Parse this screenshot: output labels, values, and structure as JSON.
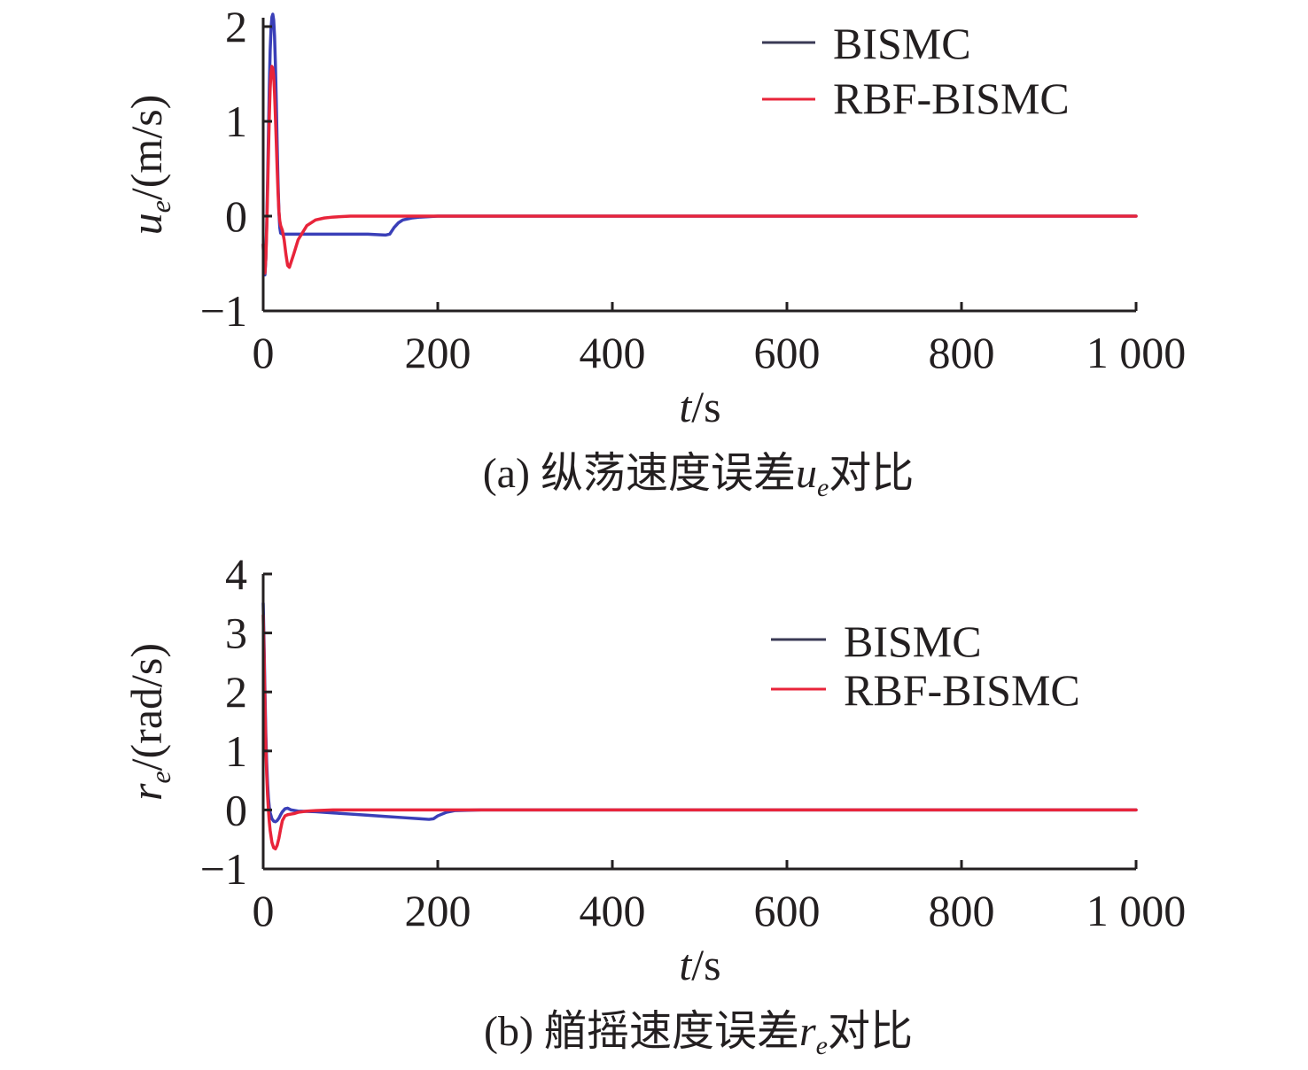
{
  "chart_data": [
    {
      "id": "a",
      "type": "line",
      "caption_prefix": "(a) 纵荡速度误差",
      "caption_symbol": "u",
      "caption_subscript": "e",
      "caption_suffix": "对比",
      "xlabel_var": "t",
      "xlabel_unit": "/s",
      "ylabel_var": "u",
      "ylabel_subscript": "e",
      "ylabel_unit": "/(m/s)",
      "xlim": [
        0,
        1000
      ],
      "ylim": [
        -1,
        2
      ],
      "xticks": [
        0,
        200,
        400,
        600,
        800,
        1000
      ],
      "xtick_labels": [
        "0",
        "200",
        "400",
        "600",
        "800",
        "1 000"
      ],
      "yticks": [
        -1,
        0,
        1,
        2
      ],
      "ytick_labels": [
        "−1",
        "0",
        "1",
        "2"
      ],
      "legend_position": "top-right",
      "grid": false,
      "series": [
        {
          "name": "BISMC",
          "color": "#3a3fb8",
          "x": [
            0,
            1,
            2,
            3,
            4,
            5,
            6,
            7,
            8,
            9,
            10,
            11,
            12,
            13,
            14,
            15,
            16,
            17,
            18,
            19,
            20,
            22,
            24,
            26,
            28,
            30,
            40,
            60,
            80,
            100,
            120,
            140,
            145,
            150,
            155,
            160,
            170,
            180,
            200,
            300,
            400,
            500,
            600,
            700,
            800,
            900,
            1000
          ],
          "y": [
            -0.3,
            -0.55,
            -0.62,
            -0.45,
            -0.1,
            0.35,
            0.85,
            1.35,
            1.75,
            1.98,
            2.1,
            2.13,
            2.07,
            1.9,
            1.6,
            1.2,
            0.75,
            0.35,
            0.05,
            -0.12,
            -0.18,
            -0.19,
            -0.19,
            -0.19,
            -0.19,
            -0.19,
            -0.19,
            -0.19,
            -0.19,
            -0.19,
            -0.19,
            -0.2,
            -0.19,
            -0.12,
            -0.07,
            -0.04,
            -0.02,
            -0.01,
            0,
            0,
            0,
            0,
            0,
            0,
            0,
            0,
            0
          ]
        },
        {
          "name": "RBF-BISMC",
          "color": "#e8243a",
          "x": [
            0,
            1,
            2,
            3,
            4,
            5,
            6,
            7,
            8,
            9,
            10,
            11,
            12,
            13,
            14,
            15,
            16,
            17,
            18,
            19,
            20,
            22,
            24,
            26,
            28,
            30,
            35,
            40,
            50,
            60,
            70,
            80,
            100,
            120,
            150,
            200,
            300,
            400,
            500,
            600,
            700,
            800,
            900,
            1000
          ],
          "y": [
            -0.3,
            -0.55,
            -0.6,
            -0.45,
            -0.15,
            0.25,
            0.65,
            1.05,
            1.35,
            1.52,
            1.58,
            1.56,
            1.48,
            1.3,
            1.05,
            0.78,
            0.5,
            0.25,
            0.05,
            -0.05,
            -0.1,
            -0.15,
            -0.25,
            -0.4,
            -0.52,
            -0.54,
            -0.4,
            -0.25,
            -0.1,
            -0.04,
            -0.02,
            -0.01,
            0,
            0,
            0,
            0,
            0,
            0,
            0,
            0,
            0,
            0,
            0,
            0
          ]
        }
      ]
    },
    {
      "id": "b",
      "type": "line",
      "caption_prefix": "(b) 艏摇速度误差",
      "caption_symbol": "r",
      "caption_subscript": "e",
      "caption_suffix": "对比",
      "xlabel_var": "t",
      "xlabel_unit": "/s",
      "ylabel_var": "r",
      "ylabel_subscript": "e",
      "ylabel_unit": "/(rad/s)",
      "xlim": [
        0,
        1000
      ],
      "ylim": [
        -1,
        4
      ],
      "xticks": [
        0,
        200,
        400,
        600,
        800,
        1000
      ],
      "xtick_labels": [
        "0",
        "200",
        "400",
        "600",
        "800",
        "1 000"
      ],
      "yticks": [
        -1,
        0,
        1,
        2,
        3,
        4
      ],
      "ytick_labels": [
        "−1",
        "0",
        "1",
        "2",
        "3",
        "4"
      ],
      "legend_position": "top-right",
      "grid": false,
      "series": [
        {
          "name": "BISMC",
          "color": "#3a3fb8",
          "x": [
            0,
            1,
            2,
            3,
            4,
            5,
            6,
            7,
            8,
            10,
            12,
            14,
            16,
            18,
            20,
            22,
            25,
            28,
            32,
            40,
            60,
            80,
            100,
            120,
            140,
            160,
            180,
            190,
            195,
            200,
            210,
            220,
            250,
            300,
            400,
            500,
            600,
            700,
            800,
            900,
            1000
          ],
          "y": [
            3.5,
            2.8,
            2.0,
            1.3,
            0.8,
            0.45,
            0.2,
            0.05,
            -0.05,
            -0.15,
            -0.19,
            -0.2,
            -0.18,
            -0.14,
            -0.08,
            -0.03,
            0.02,
            0.03,
            0.0,
            -0.02,
            -0.03,
            -0.05,
            -0.07,
            -0.09,
            -0.11,
            -0.13,
            -0.15,
            -0.16,
            -0.15,
            -0.1,
            -0.04,
            -0.01,
            0,
            0,
            0,
            0,
            0,
            0,
            0,
            0,
            0
          ]
        },
        {
          "name": "RBF-BISMC",
          "color": "#e8243a",
          "x": [
            0,
            1,
            2,
            3,
            4,
            5,
            6,
            7,
            8,
            10,
            12,
            14,
            16,
            18,
            20,
            22,
            25,
            28,
            32,
            36,
            40,
            50,
            60,
            80,
            100,
            150,
            200,
            300,
            400,
            500,
            600,
            700,
            800,
            900,
            1000
          ],
          "y": [
            3.3,
            2.6,
            1.8,
            1.1,
            0.6,
            0.25,
            0.0,
            -0.2,
            -0.35,
            -0.55,
            -0.64,
            -0.66,
            -0.6,
            -0.48,
            -0.32,
            -0.18,
            -0.1,
            -0.08,
            -0.07,
            -0.06,
            -0.04,
            -0.02,
            -0.01,
            0,
            0,
            0,
            0,
            0,
            0,
            0,
            0,
            0,
            0,
            0,
            0
          ]
        }
      ]
    }
  ]
}
